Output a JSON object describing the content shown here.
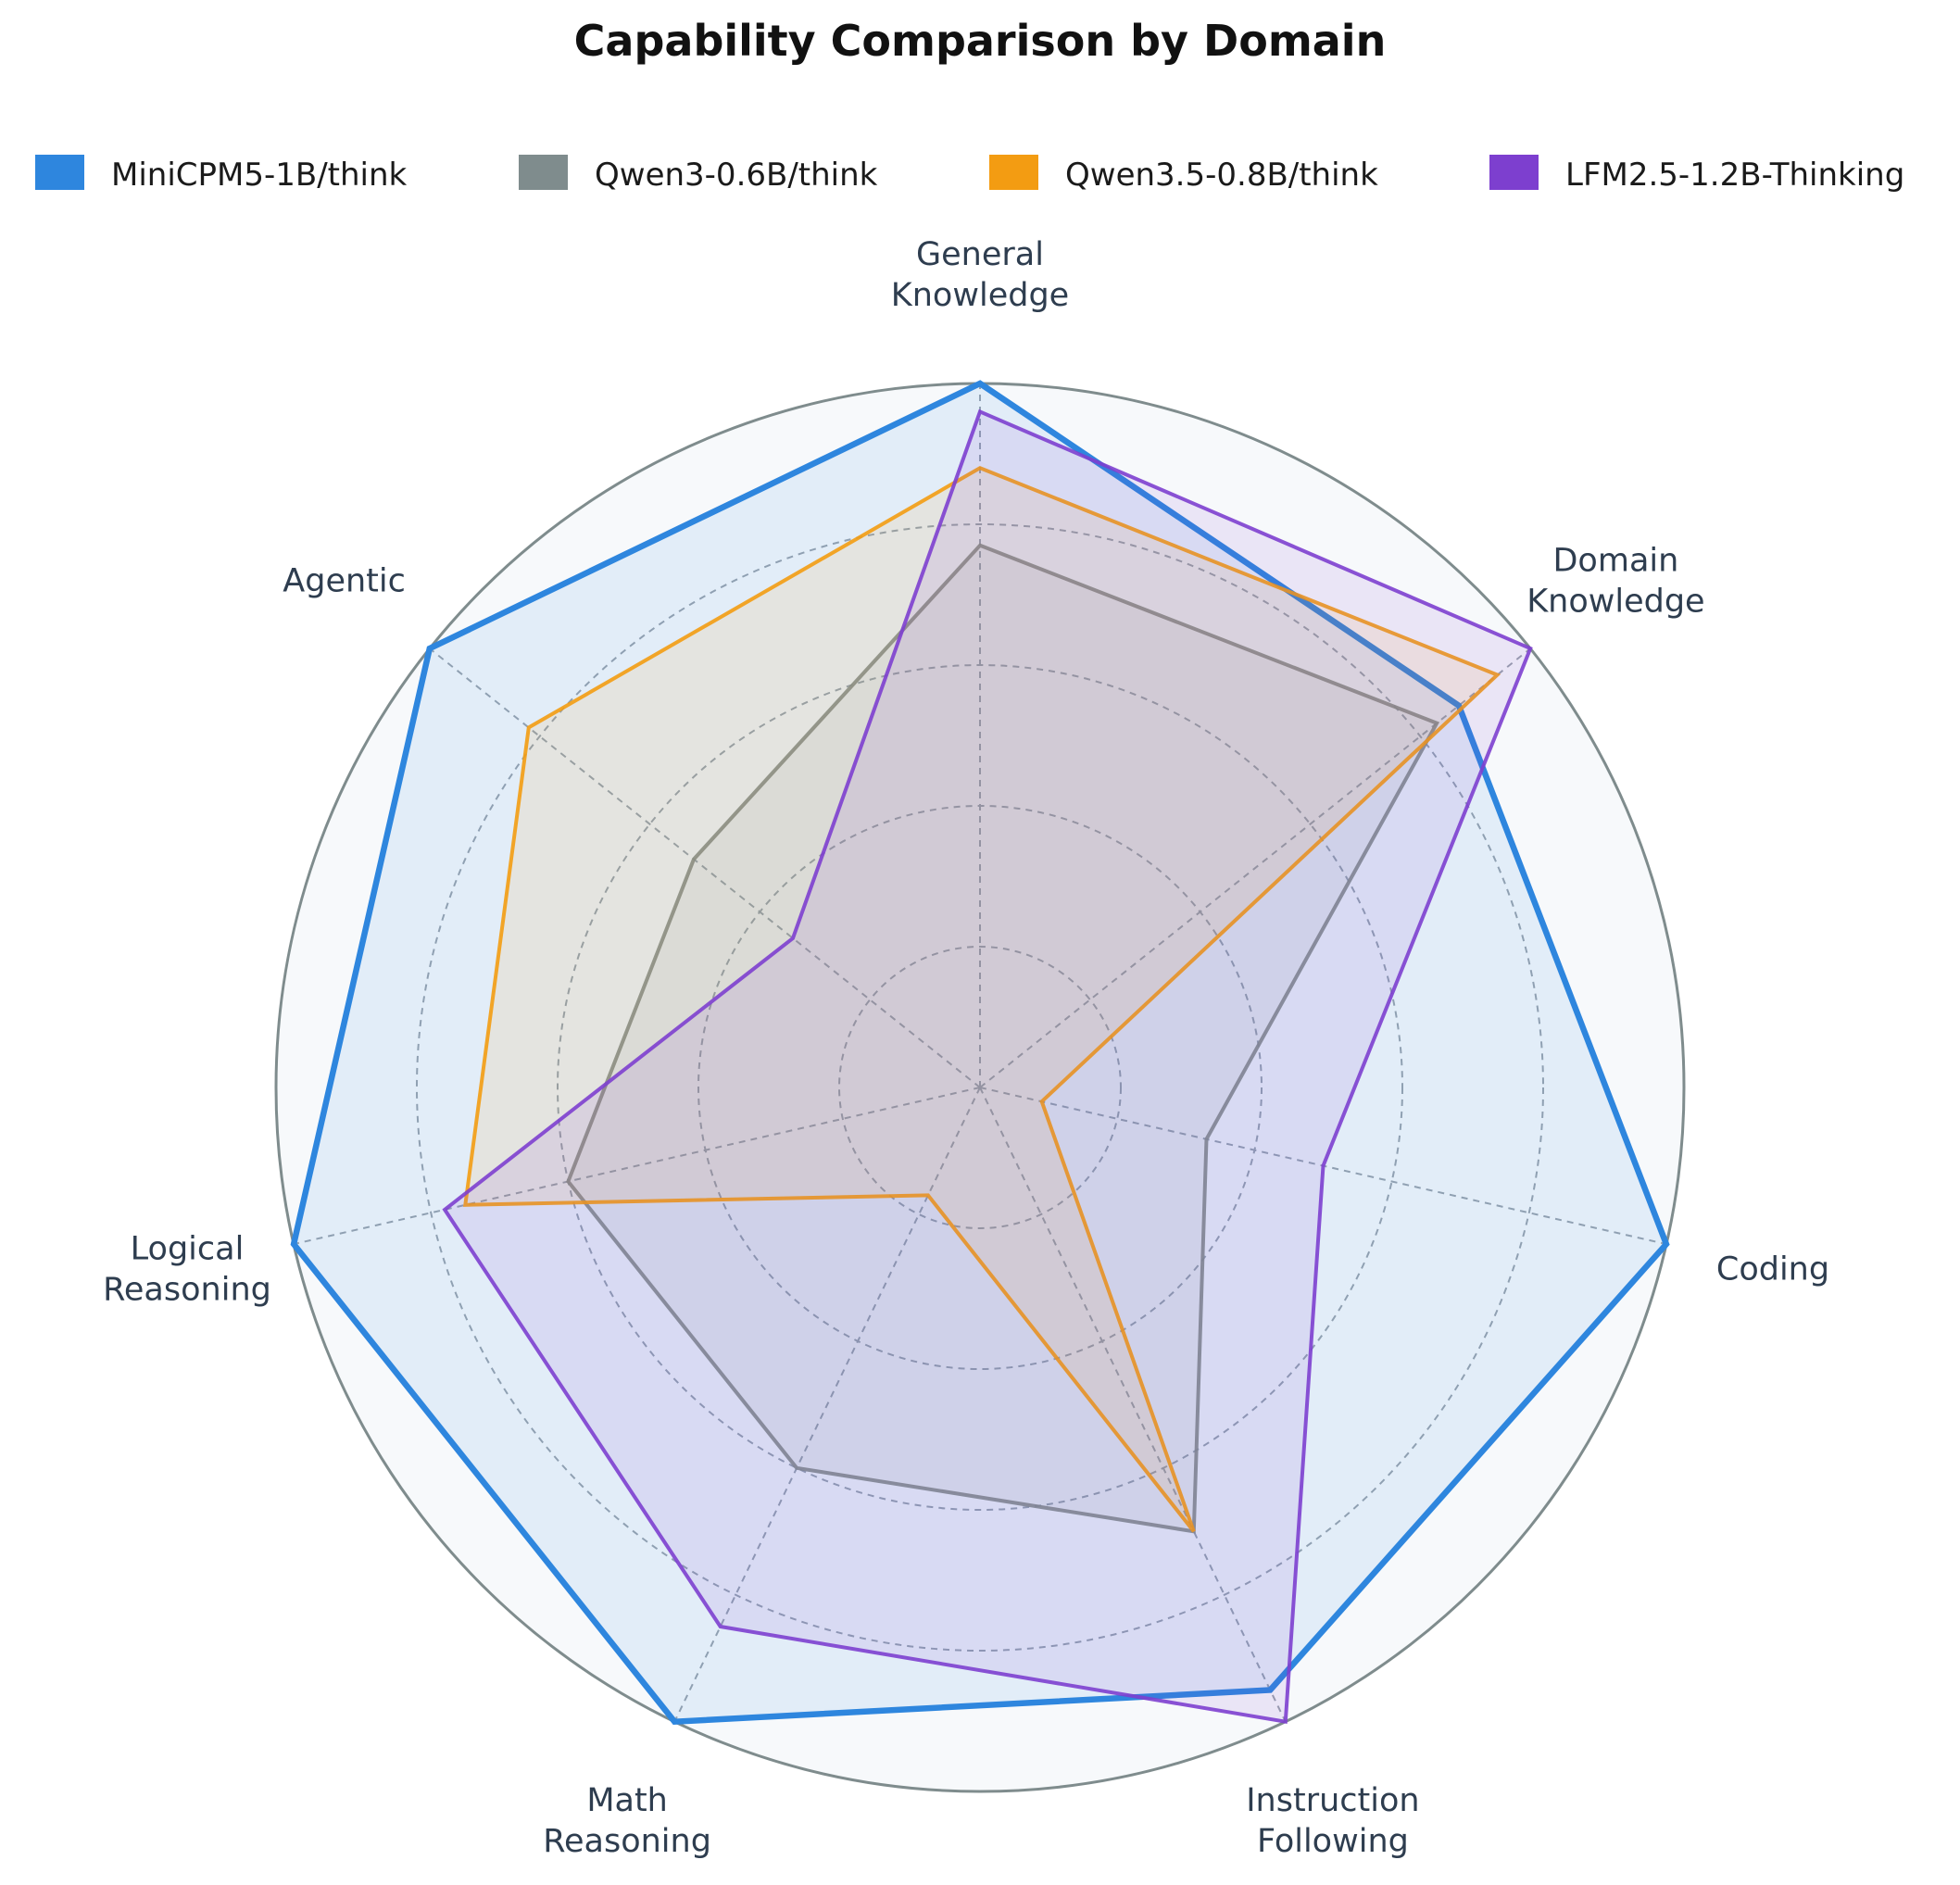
{
  "chart_data": {
    "type": "radar",
    "title": "Capability Comparison by Domain",
    "axes": [
      {
        "key": "general_knowledge",
        "label_lines": [
          "General",
          "Knowledge"
        ]
      },
      {
        "key": "domain_knowledge",
        "label_lines": [
          "Domain",
          "Knowledge"
        ]
      },
      {
        "key": "coding",
        "label_lines": [
          "Coding"
        ]
      },
      {
        "key": "instruction_following",
        "label_lines": [
          "Instruction",
          "Following"
        ]
      },
      {
        "key": "math_reasoning",
        "label_lines": [
          "Math",
          "Reasoning"
        ]
      },
      {
        "key": "logical_reasoning",
        "label_lines": [
          "Logical",
          "Reasoning"
        ]
      },
      {
        "key": "agentic",
        "label_lines": [
          "Agentic"
        ]
      }
    ],
    "range": [
      0,
      1.0
    ],
    "rings": [
      0.2,
      0.4,
      0.6,
      0.8,
      1.0
    ],
    "grid": true,
    "legend_position": "top",
    "series": [
      {
        "name": "MiniCPM5-1B/think",
        "color": "#2e86de",
        "values": [
          1.0,
          0.87,
          1.0,
          0.95,
          1.0,
          1.0,
          1.0
        ]
      },
      {
        "name": "Qwen3-0.6B/think",
        "color": "#7f8c8d",
        "values": [
          0.77,
          0.83,
          0.33,
          0.7,
          0.6,
          0.6,
          0.52
        ]
      },
      {
        "name": "Qwen3.5-0.8B/think",
        "color": "#f39c12",
        "values": [
          0.88,
          0.94,
          0.09,
          0.7,
          0.17,
          0.75,
          0.82
        ]
      },
      {
        "name": "LFM2.5-1.2B-Thinking",
        "color": "#7d3fcf",
        "values": [
          0.96,
          1.0,
          0.5,
          1.0,
          0.85,
          0.78,
          0.34
        ]
      }
    ]
  }
}
